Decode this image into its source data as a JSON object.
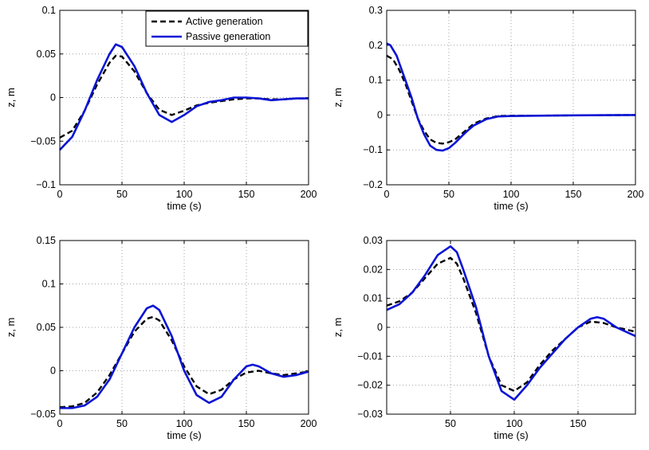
{
  "colors": {
    "active": "#000000",
    "passive": "#0a14d4",
    "grid": "#a0a0a0"
  },
  "legend": {
    "placement": "top-right",
    "entries": [
      "Active generation",
      "Passive generation"
    ]
  },
  "chart_data": [
    {
      "type": "line",
      "xlabel": "time (s)",
      "ylabel": "z, m",
      "xlim": [
        0,
        200
      ],
      "ylim": [
        -0.1,
        0.1
      ],
      "xticks": [
        0,
        50,
        100,
        150,
        200
      ],
      "xtick_labels": [
        "0",
        "50",
        "100",
        "150",
        "200"
      ],
      "yticks": [
        -0.1,
        -0.05,
        0,
        0.05,
        0.1
      ],
      "ytick_labels": [
        "−0.1",
        "−0.05",
        "0",
        "0.05",
        "0.1"
      ],
      "grid": true,
      "legend": true,
      "series": [
        {
          "name": "Active generation",
          "style": "dashed",
          "x": [
            0,
            10,
            20,
            30,
            40,
            45,
            50,
            60,
            70,
            80,
            90,
            100,
            110,
            120,
            130,
            140,
            150,
            160,
            170,
            180,
            190,
            200
          ],
          "y": [
            -0.046,
            -0.038,
            -0.015,
            0.015,
            0.04,
            0.048,
            0.047,
            0.03,
            0.005,
            -0.014,
            -0.02,
            -0.015,
            -0.009,
            -0.006,
            -0.004,
            -0.002,
            -0.001,
            -0.001,
            -0.002,
            -0.002,
            -0.001,
            -0.001
          ]
        },
        {
          "name": "Passive generation",
          "style": "solid",
          "x": [
            0,
            10,
            20,
            30,
            40,
            45,
            50,
            60,
            70,
            80,
            90,
            100,
            110,
            120,
            130,
            140,
            150,
            160,
            170,
            180,
            190,
            200
          ],
          "y": [
            -0.06,
            -0.045,
            -0.015,
            0.02,
            0.05,
            0.061,
            0.058,
            0.036,
            0.005,
            -0.02,
            -0.028,
            -0.02,
            -0.01,
            -0.005,
            -0.003,
            0.0,
            0.0,
            -0.001,
            -0.003,
            -0.002,
            -0.001,
            -0.001
          ]
        }
      ]
    },
    {
      "type": "line",
      "xlabel": "time (s)",
      "ylabel": "z, m",
      "xlim": [
        0,
        200
      ],
      "ylim": [
        -0.2,
        0.3
      ],
      "xticks": [
        0,
        50,
        100,
        150,
        200
      ],
      "xtick_labels": [
        "0",
        "50",
        "100",
        "150",
        "200"
      ],
      "yticks": [
        -0.2,
        -0.1,
        0,
        0.1,
        0.2,
        0.3
      ],
      "ytick_labels": [
        "−0.2",
        "−0.1",
        "0",
        "0.1",
        "0.2",
        "0.3"
      ],
      "grid": true,
      "legend": false,
      "series": [
        {
          "name": "Active generation",
          "style": "dashed",
          "x": [
            0,
            5,
            10,
            15,
            20,
            25,
            30,
            35,
            40,
            45,
            50,
            55,
            60,
            65,
            70,
            80,
            90,
            100,
            120,
            150,
            200
          ],
          "y": [
            0.17,
            0.16,
            0.13,
            0.09,
            0.04,
            -0.01,
            -0.045,
            -0.07,
            -0.08,
            -0.082,
            -0.078,
            -0.07,
            -0.055,
            -0.04,
            -0.025,
            -0.01,
            -0.003,
            -0.002,
            -0.002,
            -0.001,
            0.0
          ]
        },
        {
          "name": "Passive generation",
          "style": "solid",
          "x": [
            0,
            3,
            8,
            15,
            20,
            25,
            30,
            35,
            40,
            45,
            50,
            55,
            60,
            65,
            70,
            80,
            90,
            100,
            120,
            150,
            200
          ],
          "y": [
            0.205,
            0.2,
            0.17,
            0.1,
            0.05,
            -0.01,
            -0.055,
            -0.088,
            -0.1,
            -0.102,
            -0.095,
            -0.08,
            -0.062,
            -0.045,
            -0.03,
            -0.012,
            -0.004,
            -0.003,
            -0.002,
            -0.001,
            0.0
          ]
        }
      ]
    },
    {
      "type": "line",
      "xlabel": "time (s)",
      "ylabel": "z, m",
      "xlim": [
        0,
        200
      ],
      "ylim": [
        -0.05,
        0.15
      ],
      "xticks": [
        0,
        50,
        100,
        150,
        200
      ],
      "xtick_labels": [
        "0",
        "50",
        "100",
        "150",
        "200"
      ],
      "yticks": [
        -0.05,
        0,
        0.05,
        0.1,
        0.15
      ],
      "ytick_labels": [
        "−0.05",
        "0",
        "0.05",
        "0.1",
        "0.15"
      ],
      "grid": true,
      "legend": false,
      "series": [
        {
          "name": "Active generation",
          "style": "dashed",
          "x": [
            0,
            10,
            20,
            30,
            40,
            50,
            60,
            70,
            75,
            80,
            90,
            100,
            110,
            120,
            130,
            140,
            150,
            160,
            170,
            180,
            190,
            200
          ],
          "y": [
            -0.042,
            -0.041,
            -0.037,
            -0.025,
            -0.005,
            0.02,
            0.045,
            0.06,
            0.062,
            0.058,
            0.035,
            0.005,
            -0.018,
            -0.027,
            -0.022,
            -0.01,
            -0.002,
            0.0,
            -0.003,
            -0.005,
            -0.003,
            -0.001
          ]
        },
        {
          "name": "Passive generation",
          "style": "solid",
          "x": [
            0,
            10,
            20,
            30,
            40,
            50,
            60,
            70,
            75,
            80,
            90,
            100,
            110,
            120,
            130,
            140,
            150,
            155,
            160,
            170,
            180,
            190,
            200
          ],
          "y": [
            -0.043,
            -0.043,
            -0.04,
            -0.03,
            -0.01,
            0.02,
            0.05,
            0.072,
            0.075,
            0.07,
            0.04,
            0.0,
            -0.028,
            -0.037,
            -0.03,
            -0.01,
            0.005,
            0.007,
            0.005,
            -0.003,
            -0.007,
            -0.005,
            -0.001
          ]
        }
      ]
    },
    {
      "type": "line",
      "xlabel": "time (s)",
      "ylabel": "z, m",
      "xlim": [
        0,
        195
      ],
      "ylim": [
        -0.03,
        0.03
      ],
      "xticks": [
        50,
        100,
        150
      ],
      "xtick_labels": [
        "50",
        "100",
        "150"
      ],
      "yticks": [
        -0.03,
        -0.02,
        -0.01,
        0,
        0.01,
        0.02,
        0.03
      ],
      "ytick_labels": [
        "−0.03",
        "−0.02",
        "−0.01",
        "0",
        "0.01",
        "0.02",
        "0.03"
      ],
      "grid": true,
      "legend": false,
      "series": [
        {
          "name": "Active generation",
          "style": "dashed",
          "x": [
            0,
            10,
            20,
            30,
            40,
            50,
            55,
            60,
            70,
            80,
            90,
            100,
            110,
            120,
            130,
            140,
            150,
            160,
            170,
            180,
            190,
            195
          ],
          "y": [
            0.0075,
            0.009,
            0.012,
            0.017,
            0.022,
            0.024,
            0.022,
            0.017,
            0.005,
            -0.01,
            -0.02,
            -0.022,
            -0.019,
            -0.013,
            -0.008,
            -0.004,
            0.0,
            0.002,
            0.0015,
            0.0,
            -0.001,
            -0.0015
          ]
        },
        {
          "name": "Passive generation",
          "style": "solid",
          "x": [
            0,
            10,
            20,
            30,
            40,
            50,
            55,
            60,
            70,
            80,
            90,
            100,
            110,
            120,
            130,
            140,
            150,
            160,
            165,
            170,
            180,
            190,
            195
          ],
          "y": [
            0.006,
            0.008,
            0.012,
            0.018,
            0.025,
            0.028,
            0.026,
            0.02,
            0.007,
            -0.01,
            -0.022,
            -0.025,
            -0.02,
            -0.014,
            -0.009,
            -0.004,
            0.0,
            0.003,
            0.0035,
            0.003,
            0.0,
            -0.002,
            -0.003
          ]
        }
      ]
    }
  ]
}
